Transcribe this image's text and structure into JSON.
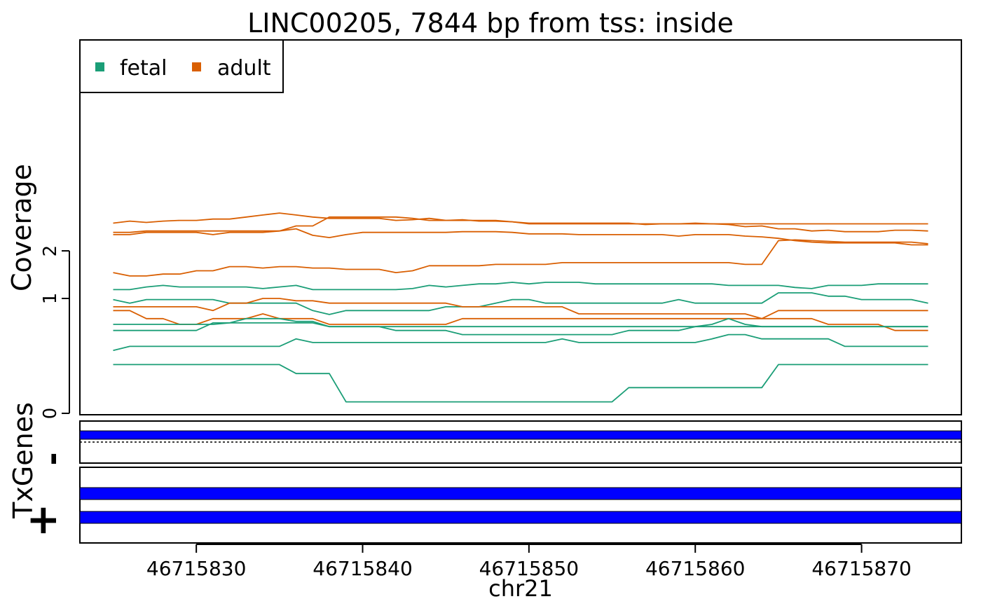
{
  "colors": {
    "fetal": "#1b9e77",
    "adult": "#d95f02",
    "gene": "#0000ff",
    "frame": "#000000"
  },
  "chart_data": {
    "type": "line",
    "title": "LINC00205, 7844 bp from tss: inside",
    "xlabel": "chr21",
    "ylabel": "Coverage",
    "y_scale": "sqrt",
    "ylim": [
      0,
      3.2
    ],
    "yticks": [
      0,
      1,
      2
    ],
    "ytick_labels": [
      "0",
      "1",
      "2"
    ],
    "xlim": [
      46715823,
      46715876
    ],
    "xticks": [
      46715830,
      46715840,
      46715850,
      46715860,
      46715870
    ],
    "xtick_labels": [
      "46715830",
      "46715840",
      "46715850",
      "46715860",
      "46715870"
    ],
    "legend": {
      "position": "top-left",
      "entries": [
        "fetal",
        "adult"
      ]
    },
    "x": [
      46715825,
      46715826,
      46715827,
      46715828,
      46715829,
      46715830,
      46715831,
      46715832,
      46715833,
      46715834,
      46715835,
      46715836,
      46715837,
      46715838,
      46715839,
      46715840,
      46715841,
      46715842,
      46715843,
      46715844,
      46715845,
      46715846,
      46715847,
      46715848,
      46715849,
      46715850,
      46715851,
      46715852,
      46715853,
      46715854,
      46715855,
      46715856,
      46715857,
      46715858,
      46715859,
      46715860,
      46715861,
      46715862,
      46715863,
      46715864,
      46715865,
      46715866,
      46715867,
      46715868,
      46715869,
      46715870,
      46715871,
      46715872,
      46715873,
      46715874
    ],
    "series": [
      {
        "group": "adult",
        "values": [
          2.74,
          2.8,
          2.76,
          2.8,
          2.82,
          2.82,
          2.86,
          2.86,
          2.92,
          2.98,
          3.04,
          2.98,
          2.92,
          2.88,
          2.88,
          2.88,
          2.88,
          2.82,
          2.84,
          2.88,
          2.82,
          2.84,
          2.8,
          2.8,
          2.78,
          2.72,
          2.72,
          2.72,
          2.72,
          2.72,
          2.72,
          2.72,
          2.72,
          2.72,
          2.72,
          2.72,
          2.72,
          2.72,
          2.72,
          2.72,
          2.72,
          2.72,
          2.72,
          2.72,
          2.72,
          2.72,
          2.72,
          2.72,
          2.72,
          2.72
        ]
      },
      {
        "group": "adult",
        "values": [
          2.48,
          2.48,
          2.52,
          2.52,
          2.52,
          2.52,
          2.52,
          2.52,
          2.52,
          2.52,
          2.52,
          2.66,
          2.66,
          2.92,
          2.92,
          2.92,
          2.92,
          2.92,
          2.88,
          2.82,
          2.82,
          2.82,
          2.82,
          2.82,
          2.78,
          2.74,
          2.74,
          2.74,
          2.74,
          2.74,
          2.74,
          2.74,
          2.7,
          2.72,
          2.72,
          2.74,
          2.72,
          2.7,
          2.64,
          2.66,
          2.58,
          2.58,
          2.52,
          2.54,
          2.5,
          2.5,
          2.5,
          2.54,
          2.54,
          2.52
        ]
      },
      {
        "group": "adult",
        "values": [
          2.42,
          2.42,
          2.48,
          2.48,
          2.48,
          2.48,
          2.42,
          2.48,
          2.48,
          2.48,
          2.52,
          2.58,
          2.4,
          2.34,
          2.42,
          2.48,
          2.48,
          2.48,
          2.48,
          2.48,
          2.48,
          2.5,
          2.5,
          2.5,
          2.48,
          2.44,
          2.44,
          2.44,
          2.42,
          2.42,
          2.42,
          2.42,
          2.42,
          2.42,
          2.38,
          2.42,
          2.42,
          2.42,
          2.38,
          2.36,
          2.32,
          2.26,
          2.22,
          2.2,
          2.2,
          2.2,
          2.2,
          2.2,
          2.15,
          2.15
        ]
      },
      {
        "group": "adult",
        "values": [
          1.5,
          1.43,
          1.43,
          1.47,
          1.47,
          1.54,
          1.54,
          1.63,
          1.63,
          1.6,
          1.63,
          1.63,
          1.6,
          1.6,
          1.57,
          1.57,
          1.57,
          1.5,
          1.54,
          1.65,
          1.65,
          1.65,
          1.65,
          1.68,
          1.68,
          1.68,
          1.68,
          1.72,
          1.72,
          1.72,
          1.72,
          1.72,
          1.72,
          1.72,
          1.72,
          1.72,
          1.72,
          1.72,
          1.68,
          1.68,
          2.26,
          2.28,
          2.26,
          2.24,
          2.22,
          2.22,
          2.22,
          2.22,
          2.22,
          2.18
        ]
      },
      {
        "group": "fetal",
        "values": [
          1.16,
          1.16,
          1.21,
          1.24,
          1.21,
          1.21,
          1.21,
          1.21,
          1.21,
          1.18,
          1.21,
          1.24,
          1.16,
          1.16,
          1.16,
          1.16,
          1.16,
          1.16,
          1.18,
          1.24,
          1.21,
          1.24,
          1.27,
          1.27,
          1.3,
          1.27,
          1.3,
          1.3,
          1.3,
          1.27,
          1.27,
          1.27,
          1.27,
          1.27,
          1.27,
          1.27,
          1.27,
          1.24,
          1.24,
          1.24,
          1.24,
          1.2,
          1.18,
          1.24,
          1.24,
          1.24,
          1.27,
          1.27,
          1.27,
          1.27
        ]
      },
      {
        "group": "fetal",
        "values": [
          0.98,
          0.92,
          0.98,
          0.98,
          0.98,
          0.98,
          0.98,
          0.92,
          0.92,
          0.92,
          0.92,
          0.92,
          0.8,
          0.74,
          0.8,
          0.8,
          0.8,
          0.8,
          0.8,
          0.8,
          0.86,
          0.86,
          0.86,
          0.92,
          0.98,
          0.98,
          0.92,
          0.92,
          0.92,
          0.92,
          0.92,
          0.92,
          0.92,
          0.92,
          0.98,
          0.92,
          0.92,
          0.92,
          0.92,
          0.92,
          1.1,
          1.1,
          1.1,
          1.04,
          1.04,
          0.98,
          0.98,
          0.98,
          0.98,
          0.92
        ]
      },
      {
        "group": "adult",
        "values": [
          0.86,
          0.86,
          0.86,
          0.86,
          0.86,
          0.86,
          0.8,
          0.92,
          0.92,
          1.0,
          1.0,
          0.96,
          0.96,
          0.92,
          0.92,
          0.92,
          0.92,
          0.92,
          0.92,
          0.92,
          0.92,
          0.86,
          0.86,
          0.86,
          0.86,
          0.86,
          0.86,
          0.86,
          0.75,
          0.75,
          0.75,
          0.75,
          0.75,
          0.75,
          0.75,
          0.75,
          0.75,
          0.75,
          0.75,
          0.68,
          0.8,
          0.8,
          0.8,
          0.8,
          0.8,
          0.8,
          0.8,
          0.8,
          0.8,
          0.8
        ]
      },
      {
        "group": "adult",
        "values": [
          0.8,
          0.8,
          0.68,
          0.68,
          0.6,
          0.6,
          0.68,
          0.68,
          0.68,
          0.75,
          0.68,
          0.68,
          0.68,
          0.6,
          0.6,
          0.6,
          0.6,
          0.6,
          0.6,
          0.6,
          0.6,
          0.68,
          0.68,
          0.68,
          0.68,
          0.68,
          0.68,
          0.68,
          0.68,
          0.68,
          0.68,
          0.68,
          0.68,
          0.68,
          0.68,
          0.68,
          0.68,
          0.68,
          0.68,
          0.68,
          0.68,
          0.68,
          0.68,
          0.6,
          0.6,
          0.6,
          0.6,
          0.52,
          0.52,
          0.52
        ]
      },
      {
        "group": "fetal",
        "values": [
          0.6,
          0.6,
          0.6,
          0.6,
          0.6,
          0.6,
          0.6,
          0.62,
          0.62,
          0.62,
          0.62,
          0.62,
          0.62,
          0.57,
          0.57,
          0.57,
          0.57,
          0.57,
          0.57,
          0.57,
          0.57,
          0.57,
          0.57,
          0.57,
          0.57,
          0.57,
          0.57,
          0.57,
          0.57,
          0.57,
          0.57,
          0.57,
          0.57,
          0.57,
          0.57,
          0.57,
          0.57,
          0.57,
          0.57,
          0.57,
          0.57,
          0.57,
          0.57,
          0.57,
          0.57,
          0.57,
          0.57,
          0.57,
          0.57,
          0.57
        ]
      },
      {
        "group": "fetal",
        "values": [
          0.52,
          0.52,
          0.52,
          0.52,
          0.52,
          0.52,
          0.62,
          0.62,
          0.68,
          0.68,
          0.68,
          0.64,
          0.64,
          0.57,
          0.57,
          0.57,
          0.57,
          0.52,
          0.52,
          0.52,
          0.52,
          0.47,
          0.47,
          0.47,
          0.47,
          0.47,
          0.47,
          0.47,
          0.47,
          0.47,
          0.47,
          0.52,
          0.52,
          0.52,
          0.52,
          0.57,
          0.6,
          0.68,
          0.6,
          0.57,
          0.57,
          0.57,
          0.57,
          0.57,
          0.57,
          0.57,
          0.57,
          0.57,
          0.57,
          0.57
        ]
      },
      {
        "group": "fetal",
        "values": [
          0.3,
          0.34,
          0.34,
          0.34,
          0.34,
          0.34,
          0.34,
          0.34,
          0.34,
          0.34,
          0.34,
          0.42,
          0.38,
          0.38,
          0.38,
          0.38,
          0.38,
          0.38,
          0.38,
          0.38,
          0.38,
          0.38,
          0.38,
          0.38,
          0.38,
          0.38,
          0.38,
          0.42,
          0.38,
          0.38,
          0.38,
          0.38,
          0.38,
          0.38,
          0.38,
          0.38,
          0.42,
          0.47,
          0.47,
          0.42,
          0.42,
          0.42,
          0.42,
          0.42,
          0.34,
          0.34,
          0.34,
          0.34,
          0.34,
          0.34
        ]
      },
      {
        "group": "fetal",
        "values": [
          0.18,
          0.18,
          0.18,
          0.18,
          0.18,
          0.18,
          0.18,
          0.18,
          0.18,
          0.18,
          0.18,
          0.12,
          0.12,
          0.12,
          0.01,
          0.01,
          0.01,
          0.01,
          0.01,
          0.01,
          0.01,
          0.01,
          0.01,
          0.01,
          0.01,
          0.01,
          0.01,
          0.01,
          0.01,
          0.01,
          0.01,
          0.05,
          0.05,
          0.05,
          0.05,
          0.05,
          0.05,
          0.05,
          0.05,
          0.05,
          0.18,
          0.18,
          0.18,
          0.18,
          0.18,
          0.18,
          0.18,
          0.18,
          0.18,
          0.18
        ]
      }
    ]
  },
  "gene_track": {
    "label": "TxGenes",
    "strands": [
      {
        "symbol": "-",
        "transcripts": 1
      },
      {
        "symbol": "+",
        "transcripts": 2
      }
    ]
  }
}
